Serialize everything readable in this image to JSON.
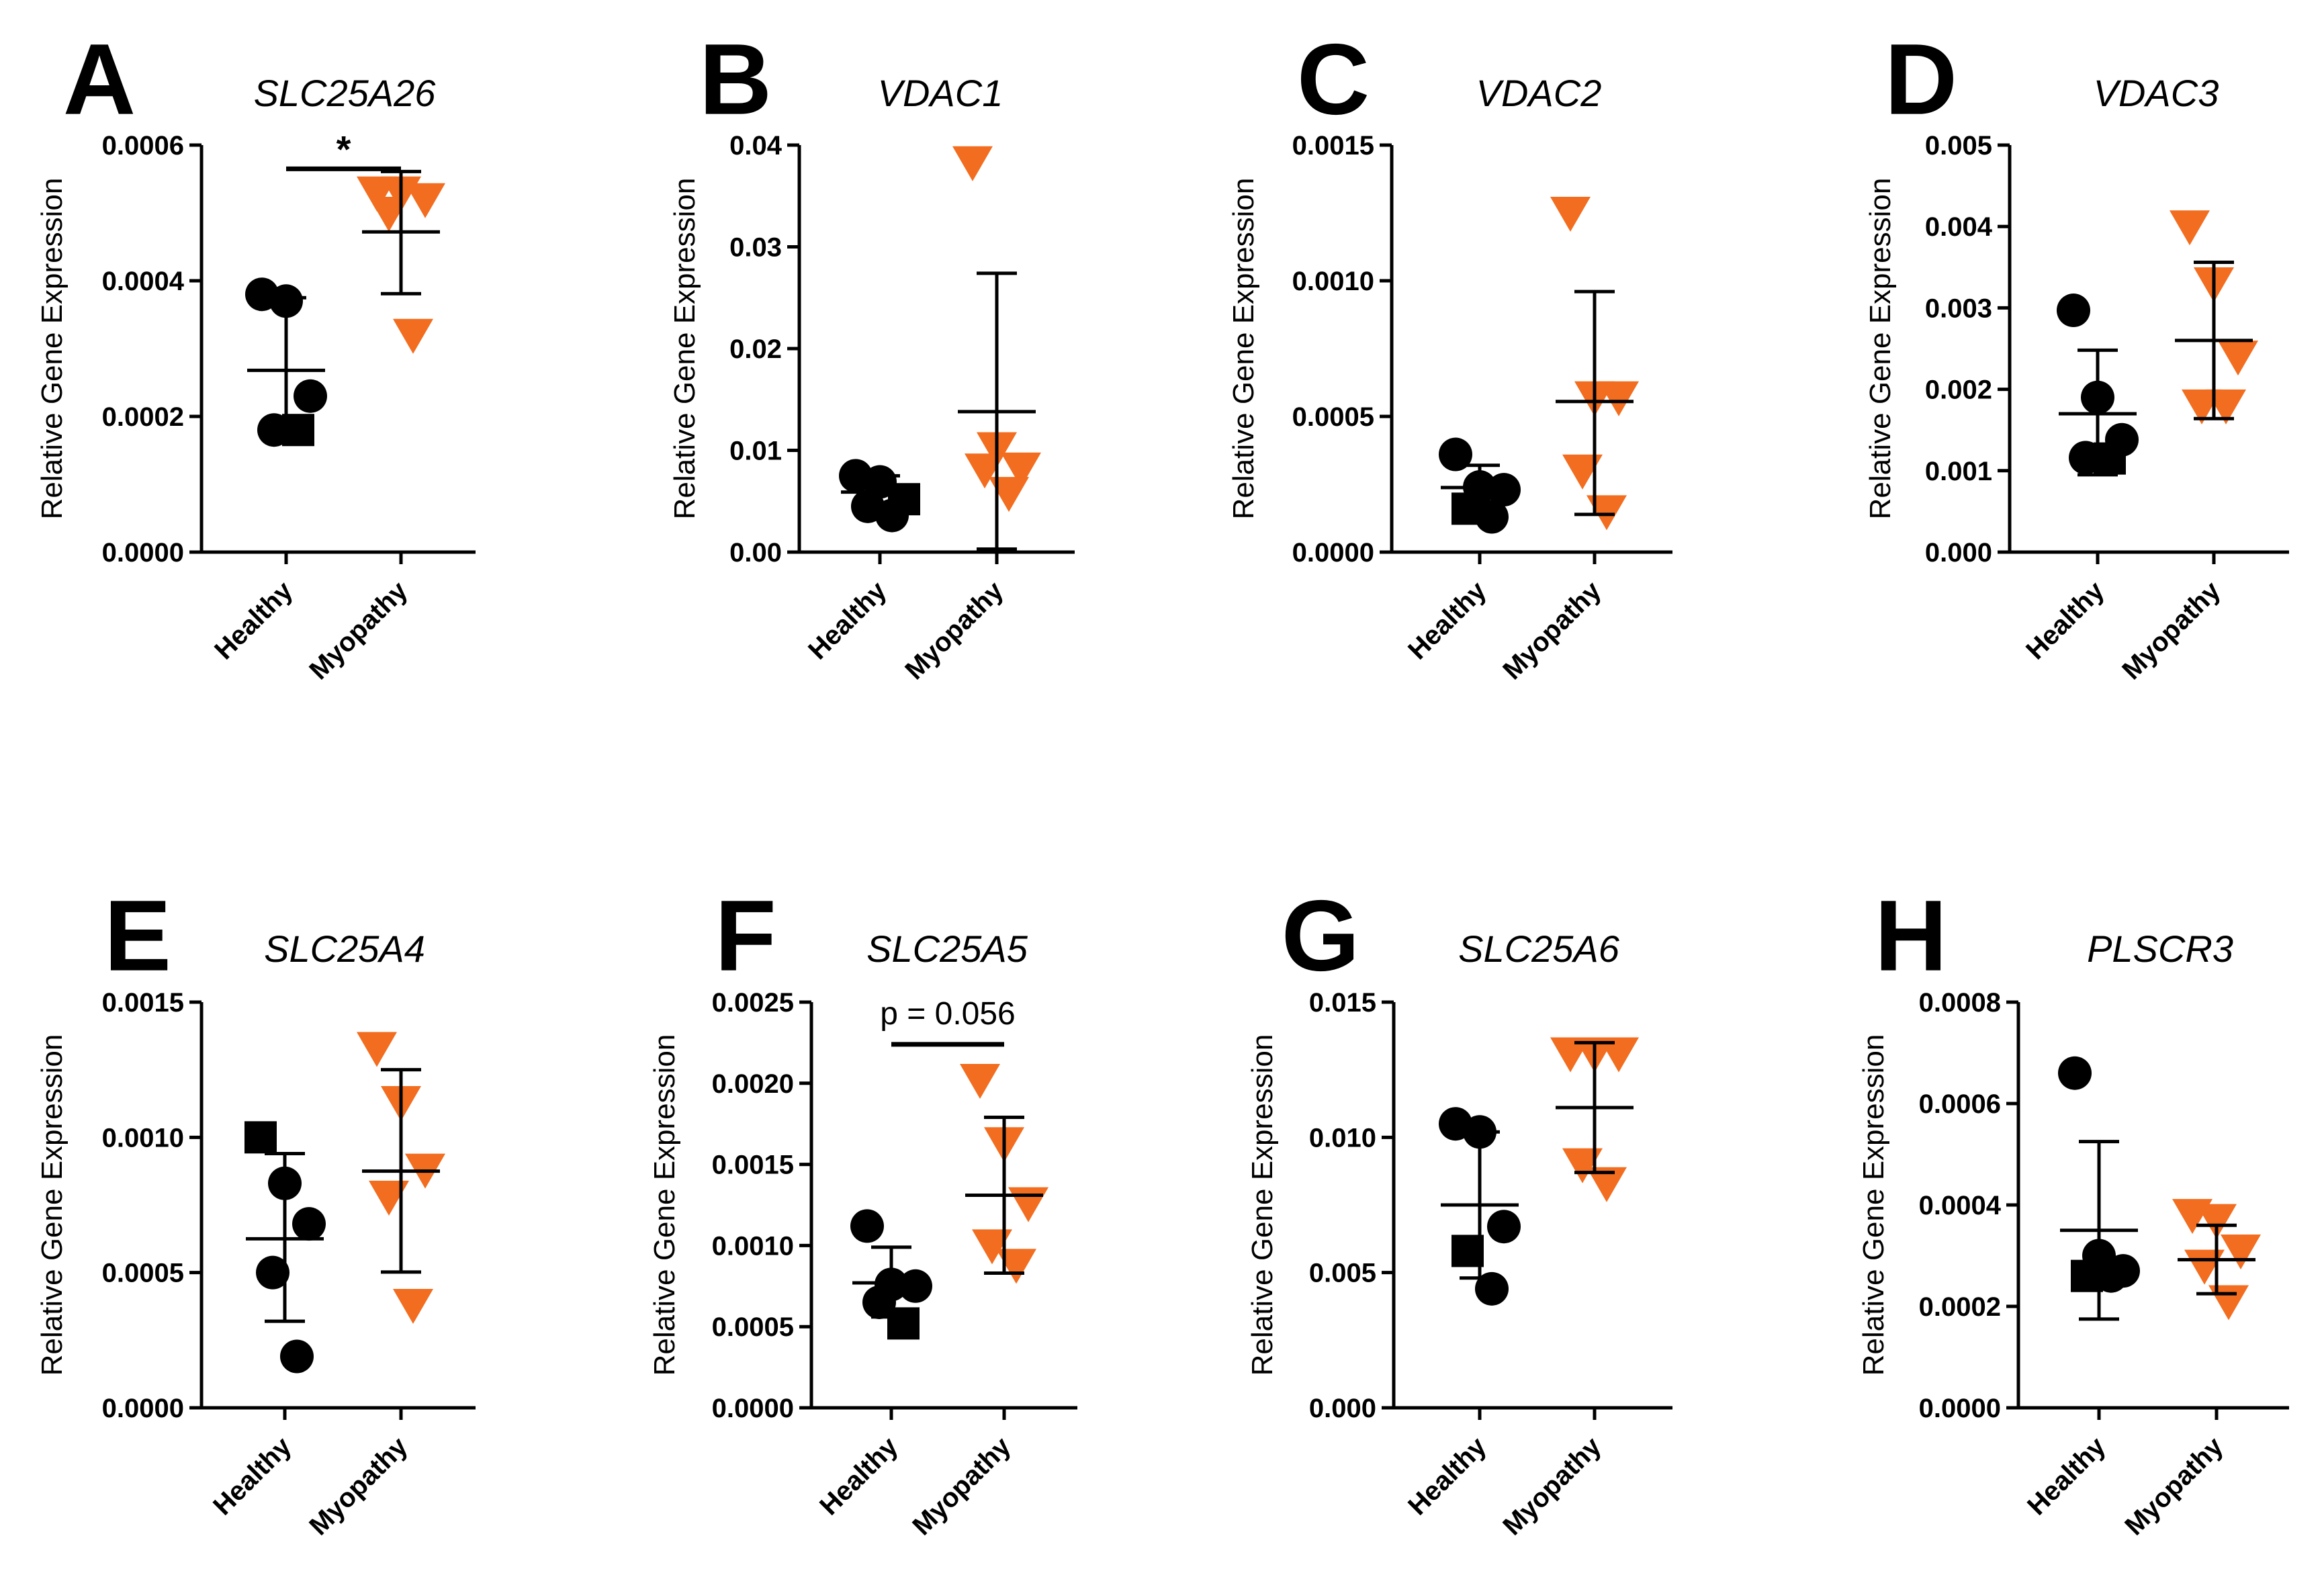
{
  "colors": {
    "healthy": "#000000",
    "myopathy": "#f26d1f"
  },
  "chart_data": [
    {
      "type": "scatter",
      "panel": "A",
      "title": "SLC25A26",
      "ylabel": "Relative Gene Expression",
      "categories": [
        "Healthy",
        "Myopathy"
      ],
      "ylim": [
        0,
        0.0006
      ],
      "yticks": [
        "0.0000",
        "0.0002",
        "0.0004",
        "0.0006"
      ],
      "series": [
        {
          "name": "Healthy",
          "marker": "circle/square",
          "points": [
            {
              "v": 0.00038,
              "m": "circle"
            },
            {
              "v": 0.00037,
              "m": "circle"
            },
            {
              "v": 0.00023,
              "m": "circle"
            },
            {
              "v": 0.00018,
              "m": "circle"
            },
            {
              "v": 0.00018,
              "m": "square"
            }
          ],
          "mean": 0.000268,
          "sd_low": 0.00018,
          "sd_high": 0.000375
        },
        {
          "name": "Myopathy",
          "marker": "triangle-down",
          "points": [
            {
              "v": 0.00053
            },
            {
              "v": 0.00053
            },
            {
              "v": 0.00052
            },
            {
              "v": 0.0005
            },
            {
              "v": 0.00032
            }
          ],
          "mean": 0.000472,
          "sd_low": 0.000381,
          "sd_high": 0.000561
        }
      ],
      "annotation": {
        "text": "*",
        "y": 0.000565
      }
    },
    {
      "type": "scatter",
      "panel": "B",
      "title": "VDAC1",
      "ylabel": "Relative Gene Expression",
      "categories": [
        "Healthy",
        "Myopathy"
      ],
      "ylim": [
        0,
        0.04
      ],
      "yticks": [
        "0.00",
        "0.01",
        "0.02",
        "0.03",
        "0.04"
      ],
      "series": [
        {
          "name": "Healthy",
          "marker": "circle/square",
          "points": [
            {
              "v": 0.0075,
              "m": "circle"
            },
            {
              "v": 0.0069,
              "m": "circle"
            },
            {
              "v": 0.0052,
              "m": "square"
            },
            {
              "v": 0.0045,
              "m": "circle"
            },
            {
              "v": 0.0036,
              "m": "circle"
            }
          ],
          "mean": 0.0059,
          "sd_low": 0.0043,
          "sd_high": 0.0075
        },
        {
          "name": "Myopathy",
          "marker": "triangle-down",
          "points": [
            {
              "v": 0.0383
            },
            {
              "v": 0.0102
            },
            {
              "v": 0.0082
            },
            {
              "v": 0.0081
            },
            {
              "v": 0.0058
            }
          ],
          "mean": 0.0138,
          "sd_low": 0.0003,
          "sd_high": 0.0274
        }
      ]
    },
    {
      "type": "scatter",
      "panel": "C",
      "title": "VDAC2",
      "ylabel": "Relative Gene Expression",
      "categories": [
        "Healthy",
        "Myopathy"
      ],
      "ylim": [
        0,
        0.0015
      ],
      "yticks": [
        "0.0000",
        "0.0005",
        "0.0010",
        "0.0015"
      ],
      "series": [
        {
          "name": "Healthy",
          "marker": "circle/square",
          "points": [
            {
              "v": 0.00036,
              "m": "circle"
            },
            {
              "v": 0.00024,
              "m": "circle"
            },
            {
              "v": 0.00023,
              "m": "circle"
            },
            {
              "v": 0.00016,
              "m": "square"
            },
            {
              "v": 0.00013,
              "m": "circle"
            }
          ],
          "mean": 0.000238,
          "sd_low": 0.000155,
          "sd_high": 0.00032
        },
        {
          "name": "Myopathy",
          "marker": "triangle-down",
          "points": [
            {
              "v": 0.00125
            },
            {
              "v": 0.00057
            },
            {
              "v": 0.00057
            },
            {
              "v": 0.0003
            },
            {
              "v": 0.00015
            }
          ],
          "mean": 0.000555,
          "sd_low": 0.000139,
          "sd_high": 0.00096
        }
      ]
    },
    {
      "type": "scatter",
      "panel": "D",
      "title": "VDAC3",
      "ylabel": "Relative Gene Expression",
      "categories": [
        "Healthy",
        "Myopathy"
      ],
      "ylim": [
        0,
        0.005
      ],
      "yticks": [
        "0.000",
        "0.001",
        "0.002",
        "0.003",
        "0.004",
        "0.005"
      ],
      "series": [
        {
          "name": "Healthy",
          "marker": "circle/square",
          "points": [
            {
              "v": 0.00297,
              "m": "circle"
            },
            {
              "v": 0.0019,
              "m": "circle"
            },
            {
              "v": 0.00138,
              "m": "circle"
            },
            {
              "v": 0.00116,
              "m": "circle"
            },
            {
              "v": 0.00115,
              "m": "square"
            }
          ],
          "mean": 0.0017,
          "sd_low": 0.00095,
          "sd_high": 0.00248
        },
        {
          "name": "Myopathy",
          "marker": "triangle-down",
          "points": [
            {
              "v": 0.004
            },
            {
              "v": 0.0033
            },
            {
              "v": 0.0024
            },
            {
              "v": 0.0018
            },
            {
              "v": 0.0018
            }
          ],
          "mean": 0.0026,
          "sd_low": 0.00164,
          "sd_high": 0.00356
        }
      ]
    },
    {
      "type": "scatter",
      "panel": "E",
      "title": "SLC25A4",
      "ylabel": "Relative Gene Expression",
      "categories": [
        "Healthy",
        "Myopathy"
      ],
      "ylim": [
        0,
        0.0015
      ],
      "yticks": [
        "0.0000",
        "0.0005",
        "0.0010",
        "0.0015"
      ],
      "series": [
        {
          "name": "Healthy",
          "marker": "circle/square",
          "points": [
            {
              "v": 0.001,
              "m": "square"
            },
            {
              "v": 0.00083,
              "m": "circle"
            },
            {
              "v": 0.00068,
              "m": "circle"
            },
            {
              "v": 0.0005,
              "m": "circle"
            },
            {
              "v": 0.00019,
              "m": "circle"
            }
          ],
          "mean": 0.000625,
          "sd_low": 0.00032,
          "sd_high": 0.00094
        },
        {
          "name": "Myopathy",
          "marker": "triangle-down",
          "points": [
            {
              "v": 0.00133
            },
            {
              "v": 0.00113
            },
            {
              "v": 0.00088
            },
            {
              "v": 0.00078
            },
            {
              "v": 0.00038
            }
          ],
          "mean": 0.000875,
          "sd_low": 0.000502,
          "sd_high": 0.00125
        }
      ]
    },
    {
      "type": "scatter",
      "panel": "F",
      "title": "SLC25A5",
      "ylabel": "Relative Gene Expression",
      "categories": [
        "Healthy",
        "Myopathy"
      ],
      "ylim": [
        0,
        0.0025
      ],
      "yticks": [
        "0.0000",
        "0.0005",
        "0.0010",
        "0.0015",
        "0.0020",
        "0.0025"
      ],
      "series": [
        {
          "name": "Healthy",
          "marker": "circle/square",
          "points": [
            {
              "v": 0.00112,
              "m": "circle"
            },
            {
              "v": 0.00076,
              "m": "circle"
            },
            {
              "v": 0.00075,
              "m": "circle"
            },
            {
              "v": 0.00065,
              "m": "circle"
            },
            {
              "v": 0.00052,
              "m": "square"
            }
          ],
          "mean": 0.00077,
          "sd_low": 0.00056,
          "sd_high": 0.00099
        },
        {
          "name": "Myopathy",
          "marker": "triangle-down",
          "points": [
            {
              "v": 0.00202
            },
            {
              "v": 0.00163
            },
            {
              "v": 0.00126
            },
            {
              "v": 0.001
            },
            {
              "v": 0.00088
            }
          ],
          "mean": 0.00131,
          "sd_low": 0.00083,
          "sd_high": 0.00179
        }
      ],
      "annotation": {
        "text": "p = 0.056",
        "y": 0.00224
      }
    },
    {
      "type": "scatter",
      "panel": "G",
      "title": "SLC25A6",
      "ylabel": "Relative Gene Expression",
      "categories": [
        "Healthy",
        "Myopathy"
      ],
      "ylim": [
        0,
        0.015
      ],
      "yticks": [
        "0.000",
        "0.005",
        "0.010",
        "0.015"
      ],
      "series": [
        {
          "name": "Healthy",
          "marker": "circle/square",
          "points": [
            {
              "v": 0.0105,
              "m": "circle"
            },
            {
              "v": 0.0102,
              "m": "circle"
            },
            {
              "v": 0.0067,
              "m": "circle"
            },
            {
              "v": 0.0058,
              "m": "square"
            },
            {
              "v": 0.0044,
              "m": "circle"
            }
          ],
          "mean": 0.0075,
          "sd_low": 0.0048,
          "sd_high": 0.0102
        },
        {
          "name": "Myopathy",
          "marker": "triangle-down",
          "points": [
            {
              "v": 0.0131
            },
            {
              "v": 0.0131
            },
            {
              "v": 0.0131
            },
            {
              "v": 0.009
            },
            {
              "v": 0.0083
            }
          ],
          "mean": 0.0111,
          "sd_low": 0.0087,
          "sd_high": 0.0135
        }
      ]
    },
    {
      "type": "scatter",
      "panel": "H",
      "title": "PLSCR3",
      "ylabel": "Relative Gene Expression",
      "categories": [
        "Healthy",
        "Myopathy"
      ],
      "ylim": [
        0,
        0.0008
      ],
      "yticks": [
        "0.0000",
        "0.0002",
        "0.0004",
        "0.0006",
        "0.0008"
      ],
      "series": [
        {
          "name": "Healthy",
          "marker": "circle/square",
          "points": [
            {
              "v": 0.00066,
              "m": "circle"
            },
            {
              "v": 0.0003,
              "m": "circle"
            },
            {
              "v": 0.00027,
              "m": "circle"
            },
            {
              "v": 0.00026,
              "m": "square"
            },
            {
              "v": 0.00026,
              "m": "circle"
            }
          ],
          "mean": 0.00035,
          "sd_low": 0.000175,
          "sd_high": 0.000525
        },
        {
          "name": "Myopathy",
          "marker": "triangle-down",
          "points": [
            {
              "v": 0.00038
            },
            {
              "v": 0.00037
            },
            {
              "v": 0.00031
            },
            {
              "v": 0.00028
            },
            {
              "v": 0.00021
            }
          ],
          "mean": 0.000292,
          "sd_low": 0.000225,
          "sd_high": 0.00036
        }
      ]
    }
  ]
}
